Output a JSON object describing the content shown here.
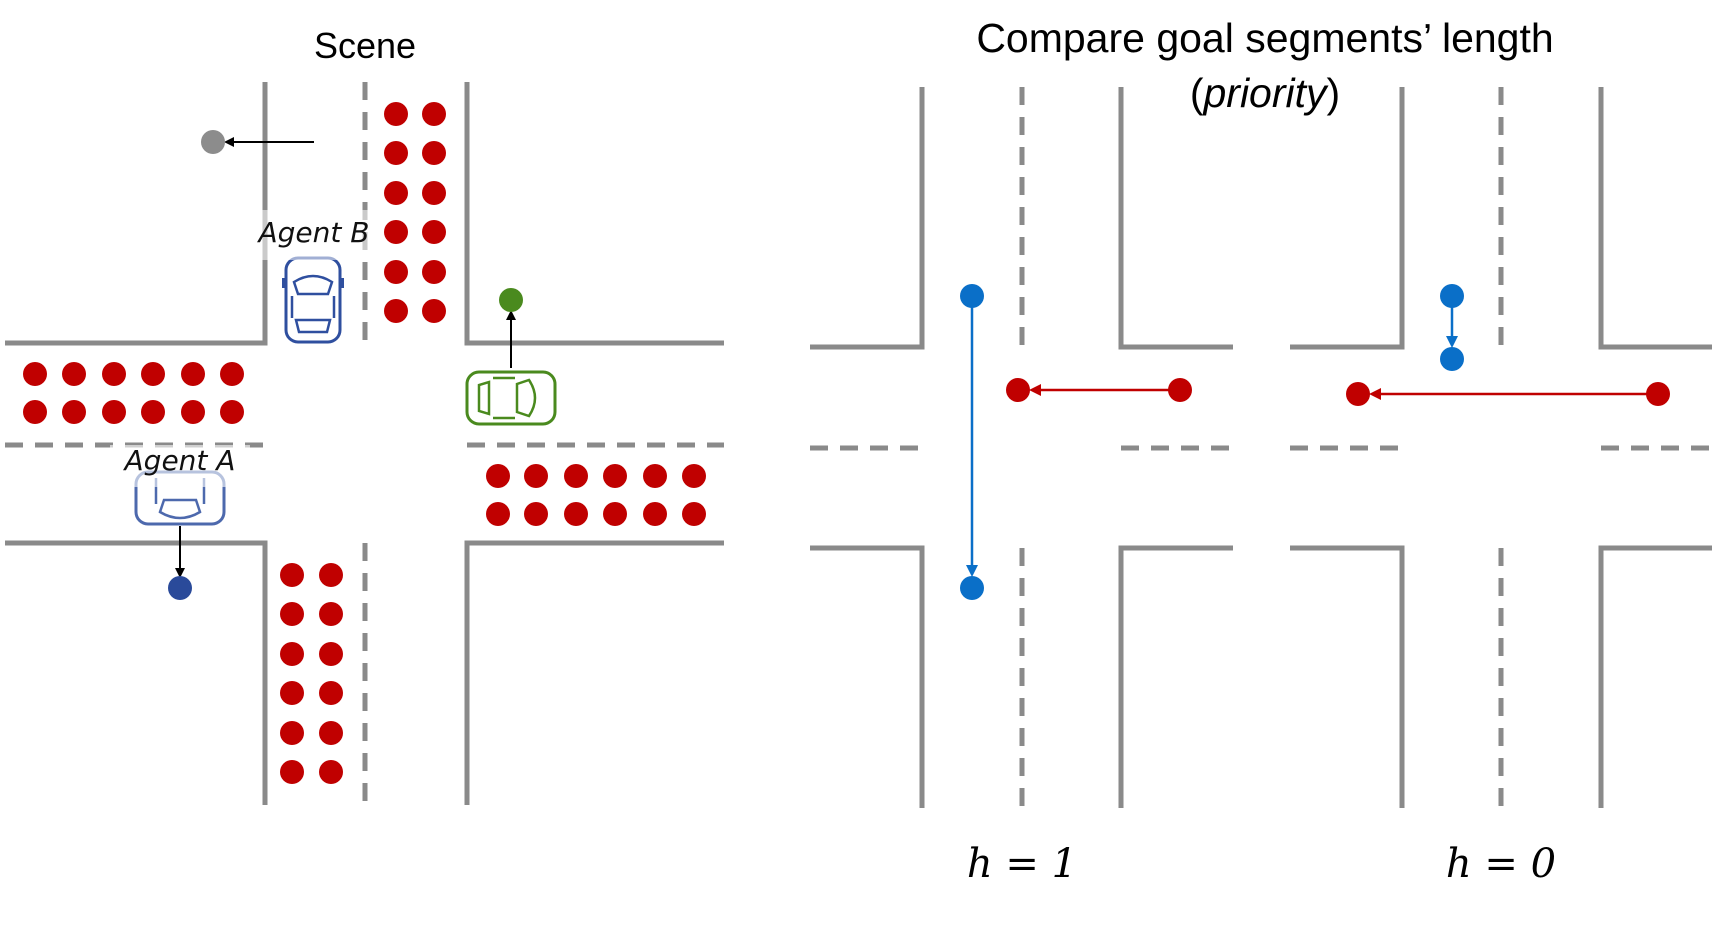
{
  "scene": {
    "title": "Scene",
    "agent_a_label": "Agent A",
    "agent_b_label": "Agent B"
  },
  "compare": {
    "title_line1": "Compare goal segments’ length",
    "title_line2": "priority",
    "panel_left_label": "h = 1",
    "panel_right_label": "h = 0"
  },
  "colors": {
    "road": "#8a8a8a",
    "crowd": "#c00000",
    "agent_blue": "#2f4f9f",
    "agent_green": "#4a8a1e",
    "goal_gray": "#8c8c8c",
    "segment_blue": "#0a6fc8",
    "segment_red": "#c00000"
  },
  "icons": [
    "car-icon",
    "pedestrian-dot",
    "goal-dot",
    "arrow"
  ]
}
